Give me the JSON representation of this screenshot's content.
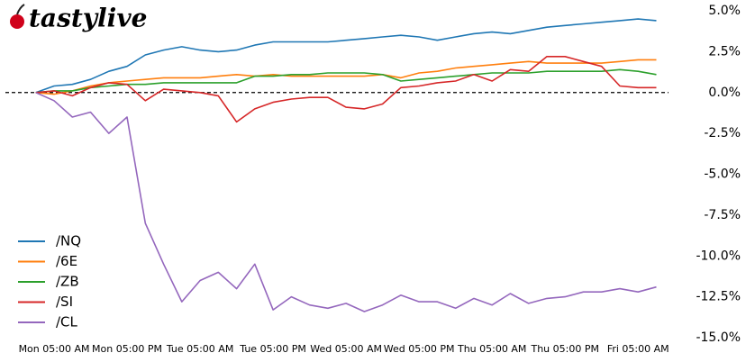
{
  "chart_data": {
    "type": "line",
    "logo": "tastylive",
    "x": [
      -3,
      0,
      3,
      6,
      9,
      12,
      15,
      18,
      21,
      24,
      27,
      30,
      33,
      36,
      39,
      42,
      45,
      48,
      51,
      54,
      57,
      60,
      63,
      66,
      69,
      72,
      75,
      78,
      81,
      84,
      87,
      90,
      93,
      96,
      99
    ],
    "xlim": [
      -8,
      101
    ],
    "xticks": [
      {
        "value": 0,
        "label": "Mon 05:00 AM"
      },
      {
        "value": 12,
        "label": "Mon 05:00 PM"
      },
      {
        "value": 24,
        "label": "Tue 05:00 AM"
      },
      {
        "value": 36,
        "label": "Tue 05:00 PM"
      },
      {
        "value": 48,
        "label": "Wed 05:00 AM"
      },
      {
        "value": 60,
        "label": "Wed 05:00 PM"
      },
      {
        "value": 72,
        "label": "Thu 05:00 AM"
      },
      {
        "value": 84,
        "label": "Thu 05:00 PM"
      },
      {
        "value": 96,
        "label": "Fri 05:00 AM"
      }
    ],
    "ylim": [
      -15,
      5
    ],
    "yticks": [
      {
        "value": 5,
        "label": "5.0%"
      },
      {
        "value": 2.5,
        "label": "2.5%"
      },
      {
        "value": 0,
        "label": "0.0%"
      },
      {
        "value": -2.5,
        "label": "-2.5%"
      },
      {
        "value": -5,
        "label": "-5.0%"
      },
      {
        "value": -7.5,
        "label": "-7.5%"
      },
      {
        "value": -10,
        "label": "-10.0%"
      },
      {
        "value": -12.5,
        "label": "-12.5%"
      },
      {
        "value": -15,
        "label": "-15.0%"
      }
    ],
    "zero_line": true,
    "legend": "lower left",
    "series": [
      {
        "name": "/NQ",
        "color": "#1f77b4",
        "values": [
          0,
          0.4,
          0.5,
          0.8,
          1.3,
          1.6,
          2.3,
          2.6,
          2.8,
          2.6,
          2.5,
          2.6,
          2.9,
          3.1,
          3.1,
          3.1,
          3.1,
          3.2,
          3.3,
          3.4,
          3.5,
          3.4,
          3.2,
          3.4,
          3.6,
          3.7,
          3.6,
          3.8,
          4.0,
          4.1,
          4.2,
          4.3,
          4.4,
          4.5,
          4.4
        ]
      },
      {
        "name": "/6E",
        "color": "#ff7f0e",
        "values": [
          0,
          -0.1,
          0.1,
          0.4,
          0.6,
          0.7,
          0.8,
          0.9,
          0.9,
          0.9,
          1.0,
          1.1,
          1.0,
          1.1,
          1.0,
          1.0,
          1.0,
          1.0,
          1.0,
          1.1,
          0.9,
          1.2,
          1.3,
          1.5,
          1.6,
          1.7,
          1.8,
          1.9,
          1.8,
          1.8,
          1.8,
          1.8,
          1.9,
          2.0,
          2.0
        ]
      },
      {
        "name": "/ZB",
        "color": "#2ca02c",
        "values": [
          0,
          0.1,
          0.1,
          0.3,
          0.4,
          0.5,
          0.5,
          0.6,
          0.6,
          0.6,
          0.6,
          0.6,
          1.0,
          1.0,
          1.1,
          1.1,
          1.2,
          1.2,
          1.2,
          1.1,
          0.7,
          0.8,
          0.9,
          1.0,
          1.1,
          1.2,
          1.2,
          1.2,
          1.3,
          1.3,
          1.3,
          1.3,
          1.4,
          1.3,
          1.1
        ]
      },
      {
        "name": "/SI",
        "color": "#d62728",
        "values": [
          0,
          0.1,
          -0.2,
          0.3,
          0.6,
          0.5,
          -0.5,
          0.2,
          0.1,
          0.0,
          -0.2,
          -1.8,
          -1.0,
          -0.6,
          -0.4,
          -0.3,
          -0.3,
          -0.9,
          -1.0,
          -0.7,
          0.3,
          0.4,
          0.6,
          0.7,
          1.1,
          0.7,
          1.4,
          1.3,
          2.2,
          2.2,
          1.9,
          1.6,
          0.4,
          0.3,
          0.3
        ]
      },
      {
        "name": "/CL",
        "color": "#9467bd",
        "values": [
          0,
          -0.5,
          -1.5,
          -1.2,
          -2.5,
          -1.5,
          -8.0,
          -10.5,
          -12.8,
          -11.5,
          -11.0,
          -12.0,
          -10.5,
          -13.3,
          -12.5,
          -13.0,
          -13.2,
          -12.9,
          -13.4,
          -13.0,
          -12.4,
          -12.8,
          -12.8,
          -13.2,
          -12.6,
          -13.0,
          -12.3,
          -12.9,
          -12.6,
          -12.5,
          -12.2,
          -12.2,
          -12.0,
          -12.2,
          -11.9
        ]
      }
    ]
  }
}
